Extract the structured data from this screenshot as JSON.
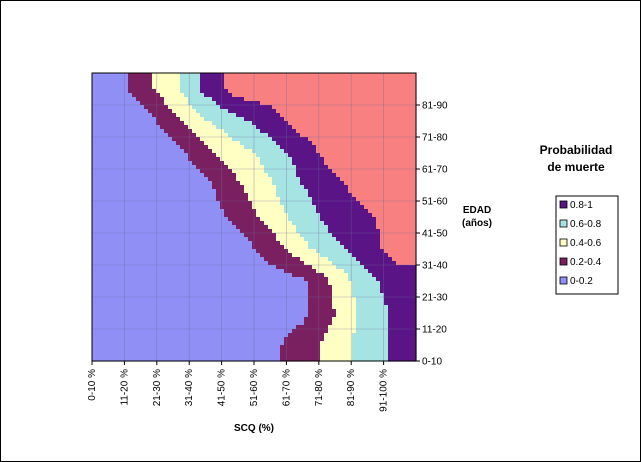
{
  "chart_data": {
    "type": "heatmap",
    "title": "",
    "xlabel": "SCQ (%)",
    "ylabel": "EDAD (años)",
    "x_categories": [
      "0-10 %",
      "11-20 %",
      "21-30 %",
      "31-40 %",
      "41-50 %",
      "51-60 %",
      "61-70 %",
      "71-80 %",
      "81-90 %",
      "91-100 %"
    ],
    "y_categories": [
      "0-10",
      "11-20",
      "21-30",
      "31-40",
      "41-50",
      "51-60",
      "61-70",
      "71-80",
      "81-90"
    ],
    "legend_title_lines": [
      "Probabilidad",
      "de muerte"
    ],
    "legend_placement": "right",
    "bands": [
      {
        "label": "0.8-1",
        "min": 0.8,
        "max": 1.0,
        "color": "#5a1486"
      },
      {
        "label": "0.6-0.8",
        "min": 0.6,
        "max": 0.8,
        "color": "#a6e4e4"
      },
      {
        "label": "0.4-0.6",
        "min": 0.4,
        "max": 0.6,
        "color": "#ffffc4"
      },
      {
        "label": "0.2-0.4",
        "min": 0.2,
        "max": 0.4,
        "color": "#7a2060"
      },
      {
        "label": "0-0.2",
        "min": 0.0,
        "max": 0.2,
        "color": "#8f8ff6"
      }
    ],
    "top_band": {
      "label": "",
      "min": 1.0,
      "color": "#f98080"
    },
    "grid": true,
    "z_note": "Rows listed from EDAD 81-90 (top) to 0-10 (bottom); columns follow x_categories.",
    "z": [
      [
        0.03,
        0.3,
        0.55,
        0.85,
        1.1,
        1.1,
        1.1,
        1.1,
        1.1,
        1.1
      ],
      [
        0.03,
        0.05,
        0.35,
        0.58,
        0.75,
        0.92,
        1.1,
        1.1,
        1.1,
        1.1
      ],
      [
        0.03,
        0.05,
        0.1,
        0.35,
        0.52,
        0.68,
        0.9,
        1.1,
        1.1,
        1.1
      ],
      [
        0.03,
        0.05,
        0.05,
        0.15,
        0.38,
        0.58,
        0.8,
        0.95,
        1.1,
        1.1
      ],
      [
        0.03,
        0.05,
        0.05,
        0.1,
        0.25,
        0.48,
        0.7,
        0.9,
        0.97,
        1.1
      ],
      [
        0.03,
        0.05,
        0.05,
        0.05,
        0.1,
        0.28,
        0.55,
        0.75,
        0.92,
        1.1
      ],
      [
        0.03,
        0.05,
        0.05,
        0.05,
        0.05,
        0.1,
        0.15,
        0.45,
        0.75,
        0.9
      ],
      [
        0.03,
        0.05,
        0.05,
        0.05,
        0.05,
        0.1,
        0.15,
        0.4,
        0.7,
        0.85
      ],
      [
        0.03,
        0.05,
        0.05,
        0.05,
        0.05,
        0.15,
        0.3,
        0.5,
        0.7,
        0.85
      ]
    ]
  }
}
